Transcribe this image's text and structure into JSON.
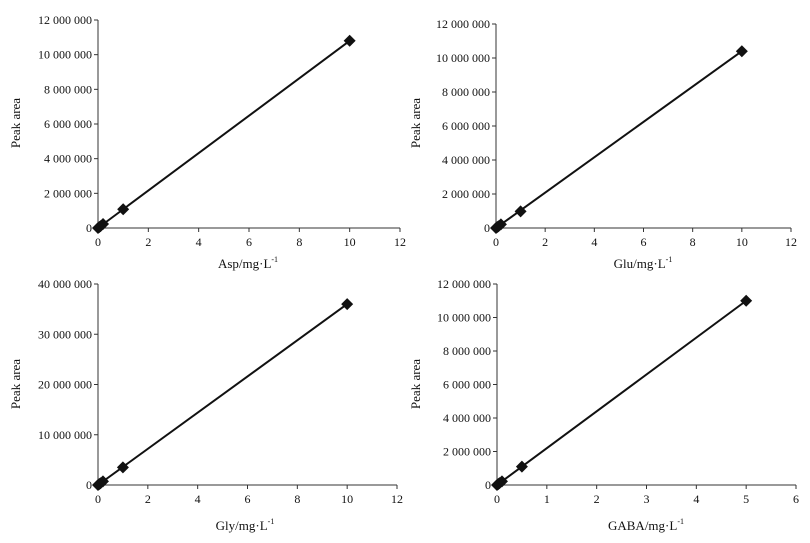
{
  "colors": {
    "axis": "#333333",
    "line": "#111111",
    "marker": "#111111",
    "background": "#ffffff"
  },
  "chart_data": [
    {
      "type": "scatter",
      "trendline": "linear",
      "marker": "diamond",
      "title": "",
      "xlabel": "Asp/mg·L",
      "xlabel_sup": "-1",
      "ylabel": "Peak area",
      "xlim": [
        0,
        12
      ],
      "ylim": [
        0,
        12000000
      ],
      "xticks": [
        0,
        2,
        4,
        6,
        8,
        10,
        12
      ],
      "xtick_labels": [
        "0",
        "2",
        "4",
        "6",
        "8",
        "10",
        "12"
      ],
      "yticks": [
        0,
        2000000,
        4000000,
        6000000,
        8000000,
        10000000,
        12000000
      ],
      "ytick_labels": [
        "0",
        "2 000 000",
        "4 000 000",
        "6 000 000",
        "8 000 000",
        "10 000 000",
        "12 000 000"
      ],
      "grid": false,
      "series": [
        {
          "x": [
            0,
            0.05,
            0.1,
            0.2,
            1,
            10
          ],
          "y": [
            0,
            50000,
            110000,
            230000,
            1080000,
            10800000
          ]
        }
      ]
    },
    {
      "type": "scatter",
      "trendline": "linear",
      "marker": "diamond",
      "title": "",
      "xlabel": "Glu/mg·L",
      "xlabel_sup": "-1",
      "ylabel": "Peak area",
      "xlim": [
        0,
        12
      ],
      "ylim": [
        0,
        12000000
      ],
      "xticks": [
        0,
        2,
        4,
        6,
        8,
        10,
        12
      ],
      "xtick_labels": [
        "0",
        "2",
        "4",
        "6",
        "8",
        "10",
        "12"
      ],
      "yticks": [
        0,
        2000000,
        4000000,
        6000000,
        8000000,
        10000000,
        12000000
      ],
      "ytick_labels": [
        "0",
        "2 000 000",
        "4 000 000",
        "6 000 000",
        "8 000 000",
        "10 000 000",
        "12 000 000"
      ],
      "grid": false,
      "series": [
        {
          "x": [
            0,
            0.05,
            0.1,
            0.2,
            1,
            10
          ],
          "y": [
            0,
            50000,
            100000,
            210000,
            980000,
            10400000
          ]
        }
      ]
    },
    {
      "type": "scatter",
      "trendline": "linear",
      "marker": "diamond",
      "title": "",
      "xlabel": "Gly/mg·L",
      "xlabel_sup": "-1",
      "ylabel": "Peak area",
      "xlim": [
        0,
        12
      ],
      "ylim": [
        0,
        40000000
      ],
      "xticks": [
        0,
        2,
        4,
        6,
        8,
        10,
        12
      ],
      "xtick_labels": [
        "0",
        "2",
        "4",
        "6",
        "8",
        "10",
        "12"
      ],
      "yticks": [
        0,
        10000000,
        20000000,
        30000000,
        40000000
      ],
      "ytick_labels": [
        "0",
        "10 000 000",
        "20 000 000",
        "30 000 000",
        "40 000 000"
      ],
      "grid": false,
      "series": [
        {
          "x": [
            0,
            0.05,
            0.1,
            0.2,
            1,
            10
          ],
          "y": [
            0,
            180000,
            360000,
            720000,
            3500000,
            36000000
          ]
        }
      ]
    },
    {
      "type": "scatter",
      "trendline": "linear",
      "marker": "diamond",
      "title": "",
      "xlabel": "GABA/mg·L",
      "xlabel_sup": "-1",
      "ylabel": "Peak area",
      "xlim": [
        0,
        6
      ],
      "ylim": [
        0,
        12000000
      ],
      "xticks": [
        0,
        1,
        2,
        3,
        4,
        5,
        6
      ],
      "xtick_labels": [
        "0",
        "1",
        "2",
        "3",
        "4",
        "5",
        "6"
      ],
      "yticks": [
        0,
        2000000,
        4000000,
        6000000,
        8000000,
        10000000,
        12000000
      ],
      "ytick_labels": [
        "0",
        "2 000 000",
        "4 000 000",
        "6 000 000",
        "8 000 000",
        "10 000 000",
        "12 000 000"
      ],
      "grid": false,
      "series": [
        {
          "x": [
            0,
            0.025,
            0.05,
            0.1,
            0.5,
            5
          ],
          "y": [
            0,
            55000,
            110000,
            220000,
            1100000,
            11000000
          ]
        }
      ]
    }
  ]
}
